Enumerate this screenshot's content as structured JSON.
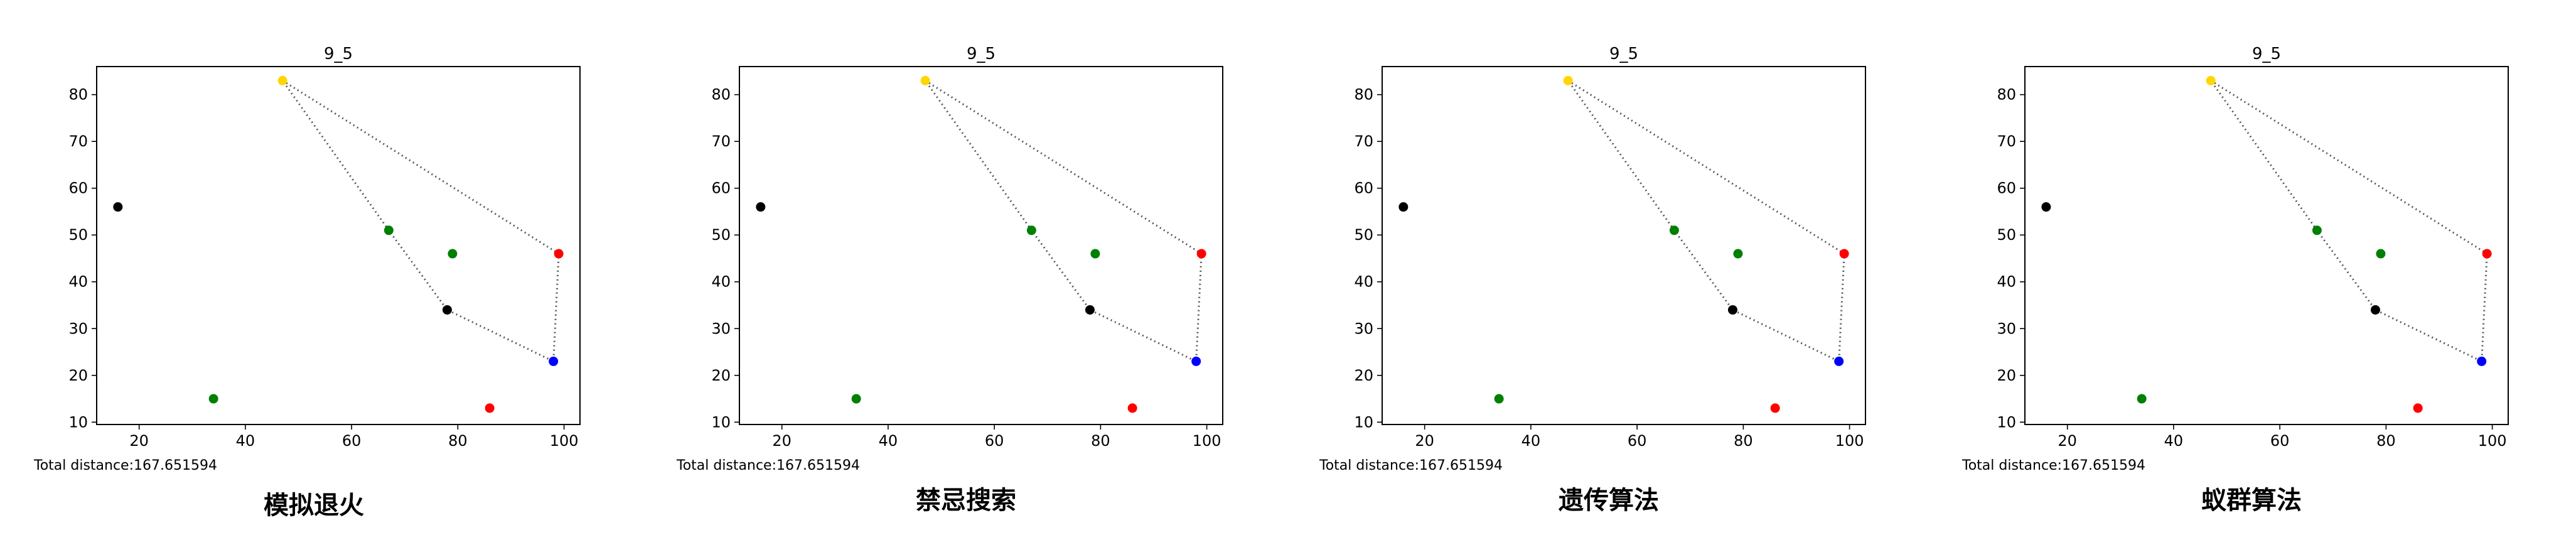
{
  "chart_data": [
    {
      "type": "scatter",
      "title": "9_5",
      "xlim": [
        12,
        103
      ],
      "ylim": [
        9.5,
        86
      ],
      "x_ticks": [
        20,
        40,
        60,
        80,
        100
      ],
      "y_ticks": [
        10,
        20,
        30,
        40,
        50,
        60,
        70,
        80
      ],
      "grid": false,
      "points": [
        {
          "x": 47,
          "y": 83,
          "color": "#ffd700"
        },
        {
          "x": 16,
          "y": 56,
          "color": "#000000"
        },
        {
          "x": 67,
          "y": 51,
          "color": "#008000"
        },
        {
          "x": 79,
          "y": 46,
          "color": "#008000"
        },
        {
          "x": 99,
          "y": 46,
          "color": "#ff0000"
        },
        {
          "x": 78,
          "y": 34,
          "color": "#000000"
        },
        {
          "x": 98,
          "y": 23,
          "color": "#0000ff"
        },
        {
          "x": 34,
          "y": 15,
          "color": "#008000"
        },
        {
          "x": 86,
          "y": 13,
          "color": "#ff0000"
        }
      ],
      "route": [
        [
          47,
          83
        ],
        [
          99,
          46
        ],
        [
          98,
          23
        ],
        [
          78,
          34
        ],
        [
          67,
          51
        ],
        [
          47,
          83
        ]
      ],
      "annotation": "Total distance:167.651594",
      "label": "模拟退火"
    },
    {
      "type": "scatter",
      "title": "9_5",
      "xlim": [
        12,
        103
      ],
      "ylim": [
        9.5,
        86
      ],
      "x_ticks": [
        20,
        40,
        60,
        80,
        100
      ],
      "y_ticks": [
        10,
        20,
        30,
        40,
        50,
        60,
        70,
        80
      ],
      "grid": false,
      "points": [
        {
          "x": 47,
          "y": 83,
          "color": "#ffd700"
        },
        {
          "x": 16,
          "y": 56,
          "color": "#000000"
        },
        {
          "x": 67,
          "y": 51,
          "color": "#008000"
        },
        {
          "x": 79,
          "y": 46,
          "color": "#008000"
        },
        {
          "x": 99,
          "y": 46,
          "color": "#ff0000"
        },
        {
          "x": 78,
          "y": 34,
          "color": "#000000"
        },
        {
          "x": 98,
          "y": 23,
          "color": "#0000ff"
        },
        {
          "x": 34,
          "y": 15,
          "color": "#008000"
        },
        {
          "x": 86,
          "y": 13,
          "color": "#ff0000"
        }
      ],
      "route": [
        [
          47,
          83
        ],
        [
          99,
          46
        ],
        [
          98,
          23
        ],
        [
          78,
          34
        ],
        [
          67,
          51
        ],
        [
          47,
          83
        ]
      ],
      "annotation": "Total distance:167.651594",
      "label": "禁忌搜索"
    },
    {
      "type": "scatter",
      "title": "9_5",
      "xlim": [
        12,
        103
      ],
      "ylim": [
        9.5,
        86
      ],
      "x_ticks": [
        20,
        40,
        60,
        80,
        100
      ],
      "y_ticks": [
        10,
        20,
        30,
        40,
        50,
        60,
        70,
        80
      ],
      "grid": false,
      "points": [
        {
          "x": 47,
          "y": 83,
          "color": "#ffd700"
        },
        {
          "x": 16,
          "y": 56,
          "color": "#000000"
        },
        {
          "x": 67,
          "y": 51,
          "color": "#008000"
        },
        {
          "x": 79,
          "y": 46,
          "color": "#008000"
        },
        {
          "x": 99,
          "y": 46,
          "color": "#ff0000"
        },
        {
          "x": 78,
          "y": 34,
          "color": "#000000"
        },
        {
          "x": 98,
          "y": 23,
          "color": "#0000ff"
        },
        {
          "x": 34,
          "y": 15,
          "color": "#008000"
        },
        {
          "x": 86,
          "y": 13,
          "color": "#ff0000"
        }
      ],
      "route": [
        [
          47,
          83
        ],
        [
          99,
          46
        ],
        [
          98,
          23
        ],
        [
          78,
          34
        ],
        [
          67,
          51
        ],
        [
          47,
          83
        ]
      ],
      "annotation": "Total distance:167.651594",
      "label": "遗传算法"
    },
    {
      "type": "scatter",
      "title": "9_5",
      "xlim": [
        12,
        103
      ],
      "ylim": [
        9.5,
        86
      ],
      "x_ticks": [
        20,
        40,
        60,
        80,
        100
      ],
      "y_ticks": [
        10,
        20,
        30,
        40,
        50,
        60,
        70,
        80
      ],
      "grid": false,
      "points": [
        {
          "x": 47,
          "y": 83,
          "color": "#ffd700"
        },
        {
          "x": 16,
          "y": 56,
          "color": "#000000"
        },
        {
          "x": 67,
          "y": 51,
          "color": "#008000"
        },
        {
          "x": 79,
          "y": 46,
          "color": "#008000"
        },
        {
          "x": 99,
          "y": 46,
          "color": "#ff0000"
        },
        {
          "x": 78,
          "y": 34,
          "color": "#000000"
        },
        {
          "x": 98,
          "y": 23,
          "color": "#0000ff"
        },
        {
          "x": 34,
          "y": 15,
          "color": "#008000"
        },
        {
          "x": 86,
          "y": 13,
          "color": "#ff0000"
        }
      ],
      "route": [
        [
          47,
          83
        ],
        [
          99,
          46
        ],
        [
          98,
          23
        ],
        [
          78,
          34
        ],
        [
          67,
          51
        ],
        [
          47,
          83
        ]
      ],
      "annotation": "Total distance:167.651594",
      "label": "蚁群算法"
    }
  ]
}
